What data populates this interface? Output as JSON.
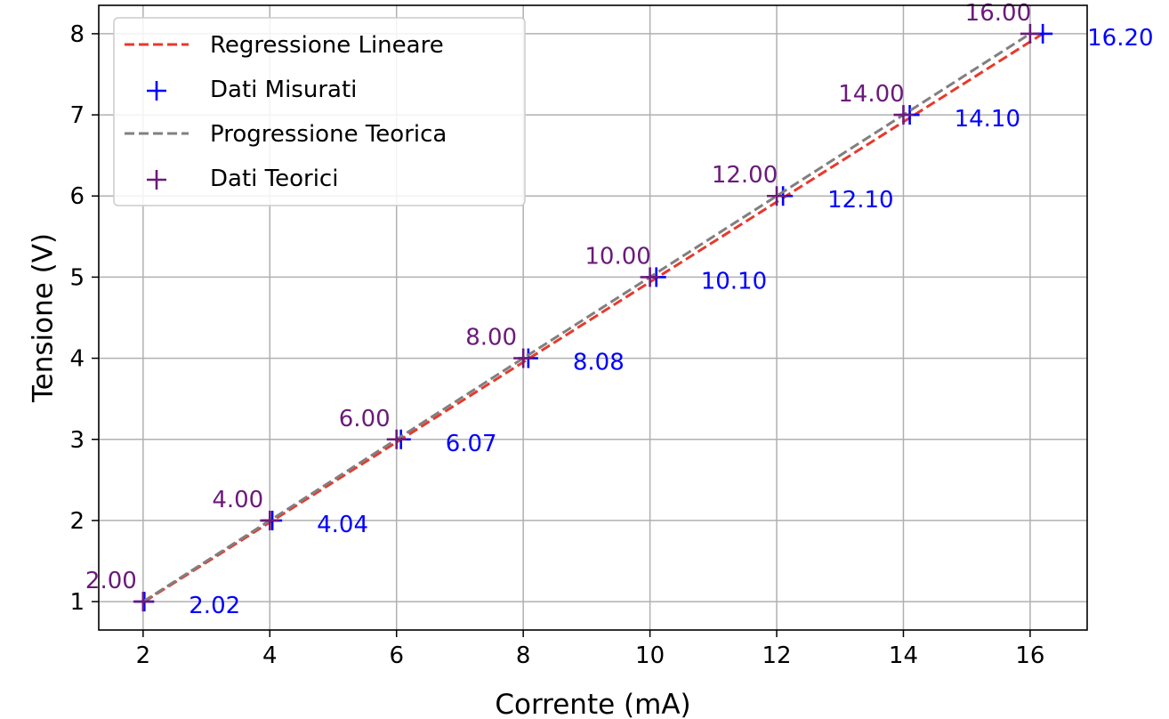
{
  "chart_data": {
    "type": "scatter",
    "xlabel": "Corrente (mA)",
    "ylabel": "Tensione (V)",
    "xlim": [
      1.3,
      16.9
    ],
    "ylim": [
      0.65,
      8.35
    ],
    "x_ticks": [
      2,
      4,
      6,
      8,
      10,
      12,
      14,
      16
    ],
    "y_ticks": [
      1,
      2,
      3,
      4,
      5,
      6,
      7,
      8
    ],
    "x_tick_labels": [
      "2",
      "4",
      "6",
      "8",
      "10",
      "12",
      "14",
      "16"
    ],
    "y_tick_labels": [
      "1",
      "2",
      "3",
      "4",
      "5",
      "6",
      "7",
      "8"
    ],
    "grid": true,
    "legend_position": "top-left",
    "series": [
      {
        "name": "Regressione Lineare",
        "kind": "line",
        "style": "dashed",
        "color": "#e8392c",
        "x": [
          2.02,
          16.2
        ],
        "y": [
          1,
          8
        ]
      },
      {
        "name": "Dati Misurati",
        "kind": "scatter",
        "marker": "plus",
        "color": "#0000ff",
        "x": [
          2.02,
          4.04,
          6.07,
          8.08,
          10.1,
          12.1,
          14.1,
          16.2
        ],
        "y": [
          1,
          2,
          3,
          4,
          5,
          6,
          7,
          8
        ],
        "labels": [
          "2.02",
          "4.04",
          "6.07",
          "8.08",
          "10.10",
          "12.10",
          "14.10",
          "16.20"
        ]
      },
      {
        "name": "Progressione Teorica",
        "kind": "line",
        "style": "dashed",
        "color": "#808080",
        "x": [
          2,
          16
        ],
        "y": [
          1,
          8
        ]
      },
      {
        "name": "Dati Teorici",
        "kind": "scatter",
        "marker": "plus",
        "color": "#6a1a7a",
        "x": [
          2,
          4,
          6,
          8,
          10,
          12,
          14,
          16
        ],
        "y": [
          1,
          2,
          3,
          4,
          5,
          6,
          7,
          8
        ],
        "labels": [
          "2.00",
          "4.00",
          "6.00",
          "8.00",
          "10.00",
          "12.00",
          "14.00",
          "16.00"
        ]
      }
    ]
  }
}
